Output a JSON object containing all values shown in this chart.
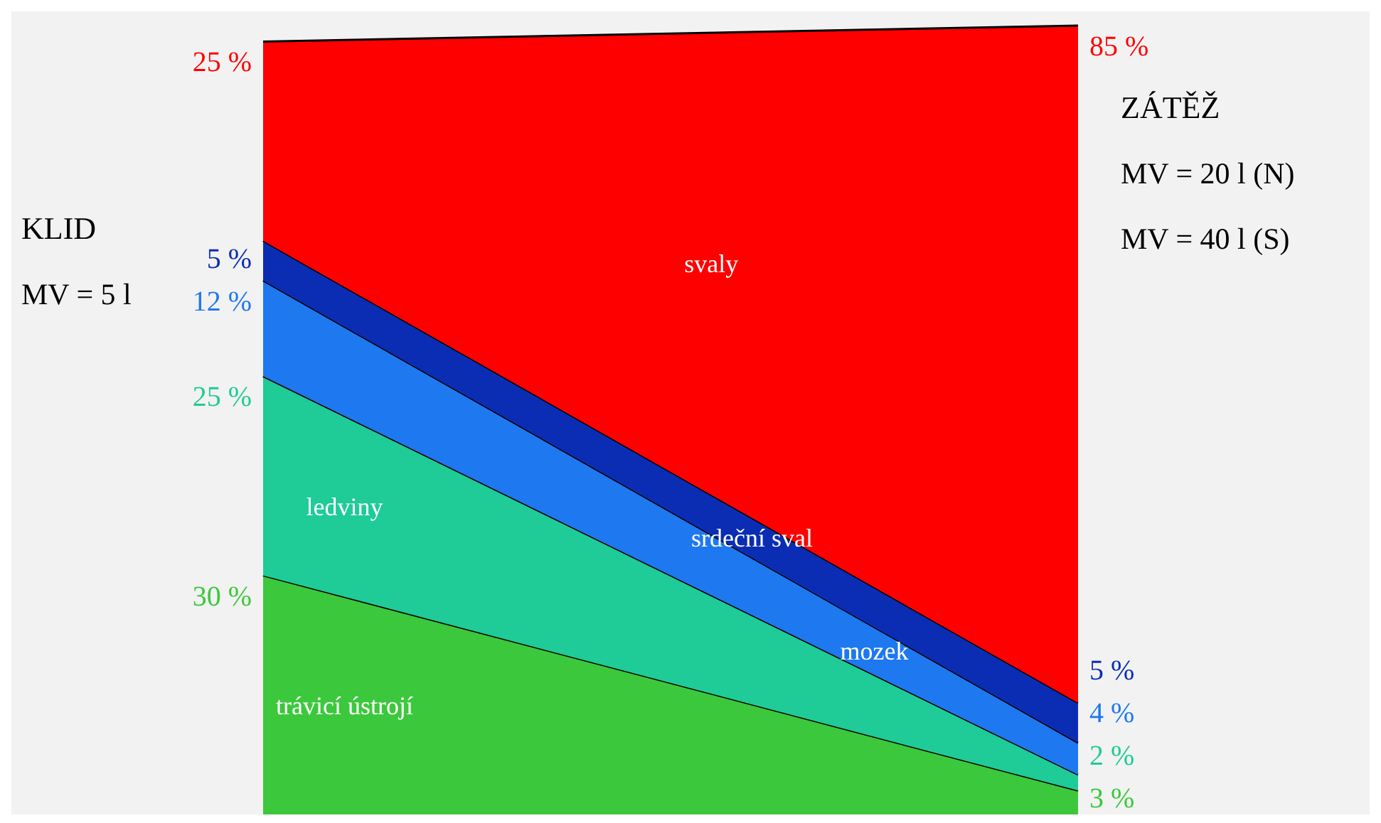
{
  "chart_data": {
    "type": "area",
    "stacked": true,
    "categories": [
      "KLID",
      "ZÁTĚŽ"
    ],
    "series": [
      {
        "name": "trávicí ústrojí",
        "color": "#3cc83c",
        "values": [
          30,
          3
        ],
        "value_labels": [
          "30 %",
          "3 %"
        ]
      },
      {
        "name": "ledviny",
        "color": "#1fcb96",
        "values": [
          25,
          2
        ],
        "value_labels": [
          "25 %",
          "2 %"
        ]
      },
      {
        "name": "mozek",
        "color": "#1e78f0",
        "values": [
          12,
          4
        ],
        "value_labels": [
          "12 %",
          "4 %"
        ]
      },
      {
        "name": "srdeční sval",
        "color": "#0a2db4",
        "values": [
          5,
          5
        ],
        "value_labels": [
          "5 %",
          "5 %"
        ]
      },
      {
        "name": "svaly",
        "color": "#ff0000",
        "values": [
          25,
          85
        ],
        "value_labels": [
          "25 %",
          "85 %"
        ]
      }
    ],
    "annotations": [
      "MV = 5 l",
      "MV = 20 l (N)",
      "MV = 40 l (S)"
    ],
    "legend": false,
    "grid": false,
    "tick_labels": false
  }
}
